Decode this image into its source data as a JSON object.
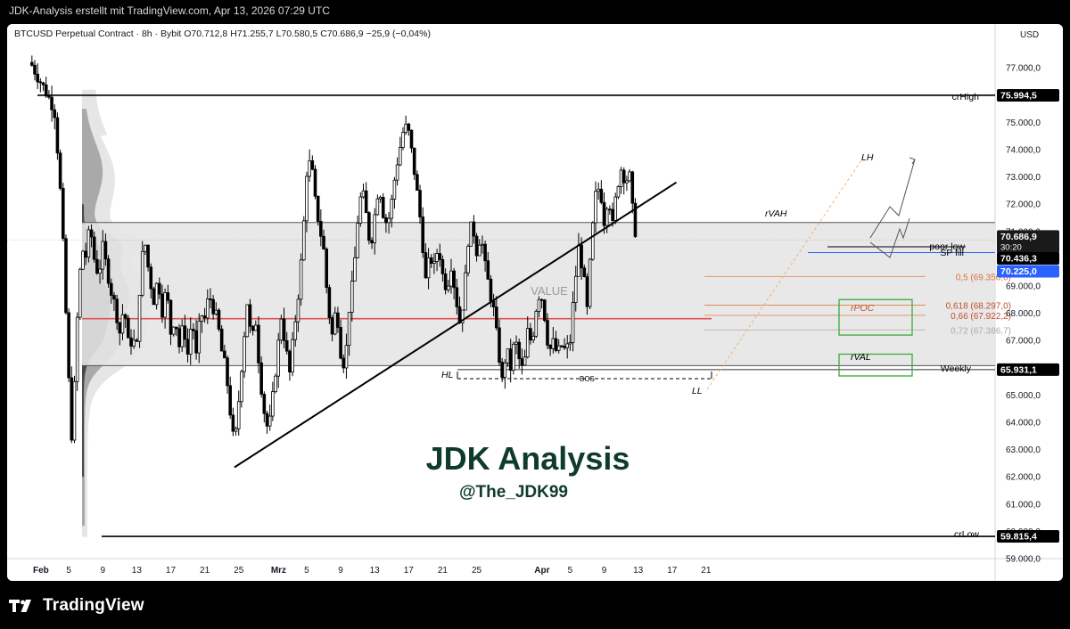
{
  "caption": "JDK-Analysis erstellt mit TradingView.com, Apr 13, 2026 07:29 UTC",
  "symbol_line": "BTCUSD Perpetual Contract · 8h · Bybit  O70.712,8  H71.255,7  L70.580,5  C70.686,9  −25,9 (−0,04%)",
  "brand": {
    "name": "TradingView",
    "logo_icon": "tradingview-logo-icon"
  },
  "colors": {
    "up": "#ffffff",
    "down": "#000000",
    "value_area": "#e6e6e6",
    "poc_line": "#e05555",
    "fib": "#e08a5a",
    "box": "#3aaa3a",
    "sp_line": "#2962ff"
  },
  "chart_data": {
    "type": "candlestick",
    "currency": "USD",
    "y_ticks": [
      "77.000,0",
      "76.000,0",
      "75.000,0",
      "74.000,0",
      "73.000,0",
      "72.000,0",
      "71.000,0",
      "70.000,0",
      "69.000,0",
      "68.000,0",
      "67.000,0",
      "66.000,0",
      "65.000,0",
      "64.000,0",
      "63.000,0",
      "62.000,0",
      "61.000,0",
      "60.000,0",
      "59.000,0"
    ],
    "y_tick_values": [
      77000,
      76000,
      75000,
      74000,
      73000,
      72000,
      71000,
      70000,
      69000,
      68000,
      67000,
      66000,
      65000,
      64000,
      63000,
      62000,
      61000,
      60000,
      59000
    ],
    "x_ticks": [
      {
        "label": "Feb",
        "day": 1
      },
      {
        "label": "5",
        "day": 5
      },
      {
        "label": "9",
        "day": 9
      },
      {
        "label": "13",
        "day": 13
      },
      {
        "label": "17",
        "day": 17
      },
      {
        "label": "21",
        "day": 21
      },
      {
        "label": "25",
        "day": 25
      },
      {
        "label": "Mrz",
        "day": 29
      },
      {
        "label": "5",
        "day": 33
      },
      {
        "label": "9",
        "day": 37
      },
      {
        "label": "13",
        "day": 41
      },
      {
        "label": "17",
        "day": 45
      },
      {
        "label": "21",
        "day": 49
      },
      {
        "label": "25",
        "day": 53
      },
      {
        "label": "Apr",
        "day": 60
      },
      {
        "label": "5",
        "day": 64
      },
      {
        "label": "9",
        "day": 68
      },
      {
        "label": "13",
        "day": 72
      },
      {
        "label": "17",
        "day": 76
      },
      {
        "label": "21",
        "day": 80
      }
    ],
    "ylim": [
      58700,
      78300
    ],
    "anchors": [
      [
        0.5,
        77200
      ],
      [
        1.5,
        76600
      ],
      [
        2.5,
        76000
      ],
      [
        3.3,
        75500
      ],
      [
        3.8,
        73500
      ],
      [
        4.2,
        71500
      ],
      [
        4.6,
        68500
      ],
      [
        5.0,
        65500
      ],
      [
        5.3,
        63400
      ],
      [
        5.6,
        64800
      ],
      [
        6.0,
        67800
      ],
      [
        6.5,
        70400
      ],
      [
        7.0,
        70100
      ],
      [
        7.5,
        71200
      ],
      [
        8.0,
        70000
      ],
      [
        8.5,
        69400
      ],
      [
        9.0,
        70400
      ],
      [
        9.5,
        69600
      ],
      [
        10.0,
        68800
      ],
      [
        10.5,
        68200
      ],
      [
        11.0,
        67300
      ],
      [
        11.5,
        68300
      ],
      [
        12.0,
        66900
      ],
      [
        12.5,
        67000
      ],
      [
        13.0,
        66800
      ],
      [
        13.5,
        69900
      ],
      [
        14.0,
        70500
      ],
      [
        14.5,
        69300
      ],
      [
        15.0,
        68500
      ],
      [
        15.5,
        69300
      ],
      [
        16.0,
        68100
      ],
      [
        16.5,
        68900
      ],
      [
        17.0,
        67300
      ],
      [
        17.5,
        67900
      ],
      [
        18.0,
        66800
      ],
      [
        18.5,
        67600
      ],
      [
        19.0,
        66500
      ],
      [
        19.5,
        67900
      ],
      [
        20.0,
        66400
      ],
      [
        20.5,
        68000
      ],
      [
        21.0,
        67800
      ],
      [
        21.5,
        68700
      ],
      [
        22.0,
        68200
      ],
      [
        22.5,
        67700
      ],
      [
        23.0,
        66600
      ],
      [
        23.5,
        65900
      ],
      [
        24.0,
        64400
      ],
      [
        24.5,
        63000
      ],
      [
        25.0,
        64800
      ],
      [
        25.5,
        66700
      ],
      [
        26.0,
        68400
      ],
      [
        26.5,
        66900
      ],
      [
        27.0,
        67700
      ],
      [
        27.5,
        65700
      ],
      [
        28.0,
        64400
      ],
      [
        28.5,
        63600
      ],
      [
        29.0,
        64900
      ],
      [
        29.5,
        66400
      ],
      [
        30.0,
        67900
      ],
      [
        30.5,
        66800
      ],
      [
        31.0,
        65800
      ],
      [
        31.5,
        67300
      ],
      [
        32.0,
        68700
      ],
      [
        32.5,
        70400
      ],
      [
        33.0,
        73200
      ],
      [
        33.5,
        73600
      ],
      [
        34.0,
        72100
      ],
      [
        34.5,
        71200
      ],
      [
        35.0,
        70300
      ],
      [
        35.5,
        68300
      ],
      [
        36.0,
        67200
      ],
      [
        36.5,
        68300
      ],
      [
        37.0,
        66600
      ],
      [
        37.5,
        66000
      ],
      [
        38.0,
        68200
      ],
      [
        38.5,
        69300
      ],
      [
        39.0,
        71400
      ],
      [
        39.5,
        72600
      ],
      [
        40.0,
        71600
      ],
      [
        40.5,
        70400
      ],
      [
        41.0,
        71600
      ],
      [
        41.5,
        72800
      ],
      [
        42.0,
        71700
      ],
      [
        42.5,
        71200
      ],
      [
        43.0,
        72100
      ],
      [
        43.5,
        73300
      ],
      [
        44.0,
        74100
      ],
      [
        44.5,
        74900
      ],
      [
        45.0,
        74600
      ],
      [
        45.5,
        73600
      ],
      [
        46.0,
        72400
      ],
      [
        46.5,
        71100
      ],
      [
        47.0,
        69200
      ],
      [
        47.5,
        70100
      ],
      [
        48.0,
        69700
      ],
      [
        48.5,
        70500
      ],
      [
        49.0,
        69400
      ],
      [
        49.5,
        68900
      ],
      [
        50.0,
        69800
      ],
      [
        50.5,
        68700
      ],
      [
        51.0,
        67700
      ],
      [
        51.5,
        68600
      ],
      [
        52.0,
        70700
      ],
      [
        52.5,
        71300
      ],
      [
        53.0,
        70300
      ],
      [
        53.5,
        70900
      ],
      [
        54.0,
        69700
      ],
      [
        54.5,
        68900
      ],
      [
        55.0,
        68100
      ],
      [
        55.5,
        66800
      ],
      [
        56.0,
        65500
      ],
      [
        56.5,
        66700
      ],
      [
        57.0,
        66000
      ],
      [
        57.5,
        67100
      ],
      [
        58.0,
        66300
      ],
      [
        58.5,
        65800
      ],
      [
        59.0,
        67300
      ],
      [
        59.5,
        66900
      ],
      [
        60.0,
        68200
      ],
      [
        60.5,
        68900
      ],
      [
        61.0,
        67900
      ],
      [
        61.5,
        66600
      ],
      [
        62.0,
        66900
      ],
      [
        62.5,
        66500
      ],
      [
        63.0,
        66800
      ],
      [
        63.5,
        66600
      ],
      [
        64.0,
        67000
      ],
      [
        64.5,
        68900
      ],
      [
        65.0,
        70400
      ],
      [
        65.5,
        69600
      ],
      [
        66.0,
        68100
      ],
      [
        66.5,
        70600
      ],
      [
        67.0,
        72300
      ],
      [
        67.5,
        72700
      ],
      [
        68.0,
        71400
      ],
      [
        68.5,
        72400
      ],
      [
        69.0,
        71200
      ],
      [
        69.5,
        72600
      ],
      [
        70.0,
        73300
      ],
      [
        70.5,
        72900
      ],
      [
        71.0,
        73000
      ],
      [
        71.5,
        71200
      ],
      [
        72.0,
        70690
      ]
    ],
    "overlays": {
      "crHigh": {
        "label": "crHigh",
        "value": 75994.5,
        "tag": "75.994,5"
      },
      "crLow": {
        "label": "crLow",
        "value": 59815.4,
        "tag": "59.815,4"
      },
      "weekly": {
        "label": "Weekly",
        "value": 65931.1,
        "tag": "65.931,1"
      },
      "last_price": {
        "value": 70686.9,
        "tag": "70.686,9",
        "countdown": "30:20"
      },
      "poor_low": {
        "label": "poor low",
        "value": 70436.3,
        "tag": "70.436,3"
      },
      "sp_fill": {
        "label": "SP fill",
        "value": 70225.0,
        "tag": "70.225,0"
      },
      "value_area": {
        "high": 71330,
        "low": 66080,
        "label": "VALUE"
      },
      "poc": {
        "value": 67800
      },
      "fibs": [
        {
          "label": "0,5 (69.350,0)",
          "value": 69350
        },
        {
          "label": "0,618 (68.297,0)",
          "value": 68297
        },
        {
          "label": "0,66 (67.922,2)",
          "value": 67922.2
        },
        {
          "label": "0,72 (67.386,7)",
          "value": 67386.7
        }
      ],
      "annotations": {
        "rVAH": "rVAH",
        "rPOC": "rPOC",
        "rVAL": "rVAL",
        "LH": "LH",
        "HL": "HL",
        "LL": "LL",
        "BOS": "BOS"
      },
      "trendline": {
        "from": [
          24.5,
          62350
        ],
        "to": [
          76.5,
          72800
        ]
      }
    }
  },
  "watermark": {
    "title": "JDK Analysis",
    "handle": "@The_JDK99"
  }
}
